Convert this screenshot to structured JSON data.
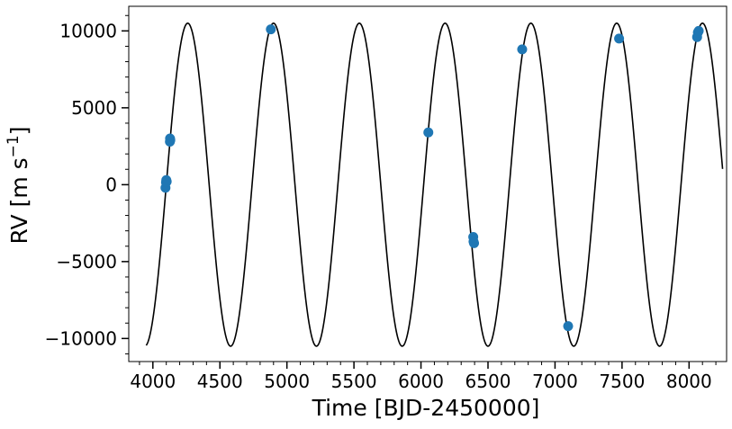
{
  "chart_data": {
    "type": "scatter",
    "xlabel": "Time [BJD-2450000]",
    "ylabel_main": "RV [m s",
    "ylabel_sup": "−1",
    "ylabel_close": "]",
    "xlim": [
      3820,
      8280
    ],
    "ylim": [
      -11500,
      11600
    ],
    "xticks": [
      4000,
      4500,
      5000,
      5500,
      6000,
      6500,
      7000,
      7500,
      8000
    ],
    "xtick_labels": [
      "4000",
      "4500",
      "5000",
      "5500",
      "6000",
      "6500",
      "7000",
      "7500",
      "8000"
    ],
    "xminor_step": 100,
    "yticks": [
      -10000,
      -5000,
      0,
      5000,
      10000
    ],
    "ytick_labels": [
      "−10000",
      "−5000",
      "0",
      "5000",
      "10000"
    ],
    "yminor_step": 1000,
    "grid": false,
    "model": {
      "color": "#000000",
      "amplitude": 10500,
      "period": 640,
      "phase_peak": 4260,
      "x_start": 3950,
      "x_end": 8250
    },
    "series": [
      {
        "color": "#1f77b4",
        "x": [
          4094,
          4098,
          4100,
          4103,
          4127,
          4128,
          4130,
          4880,
          6055,
          6390,
          6392,
          6396,
          6755,
          7098,
          7478,
          8060,
          8066,
          8072
        ],
        "y": [
          -200,
          150,
          300,
          200,
          2800,
          3000,
          2900,
          10100,
          3400,
          -3400,
          -3700,
          -3800,
          8800,
          -9200,
          9500,
          9600,
          9900,
          10000
        ]
      }
    ]
  }
}
